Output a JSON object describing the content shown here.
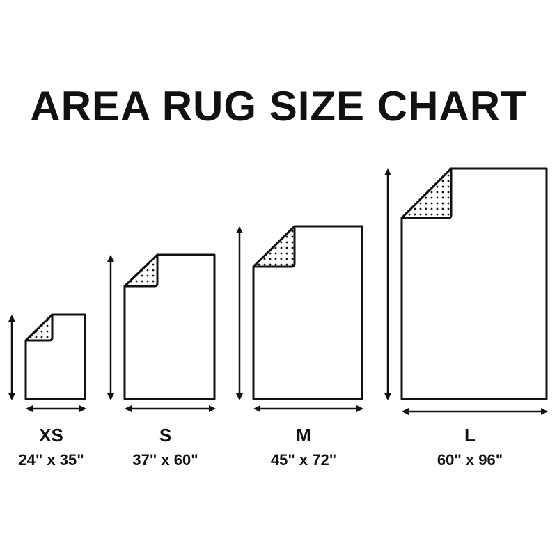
{
  "title": "AREA RUG SIZE CHART",
  "colors": {
    "stroke": "#111111",
    "fill": "#ffffff"
  },
  "rugs": [
    {
      "size": "XS",
      "dimensions": "24\" x 35\"",
      "width_in": 24,
      "length_in": 35
    },
    {
      "size": "S",
      "dimensions": "37\" x 60\"",
      "width_in": 37,
      "length_in": 60
    },
    {
      "size": "M",
      "dimensions": "45\" x 72\"",
      "width_in": 45,
      "length_in": 72
    },
    {
      "size": "L",
      "dimensions": "60\" x 96\"",
      "width_in": 60,
      "length_in": 96
    }
  ]
}
